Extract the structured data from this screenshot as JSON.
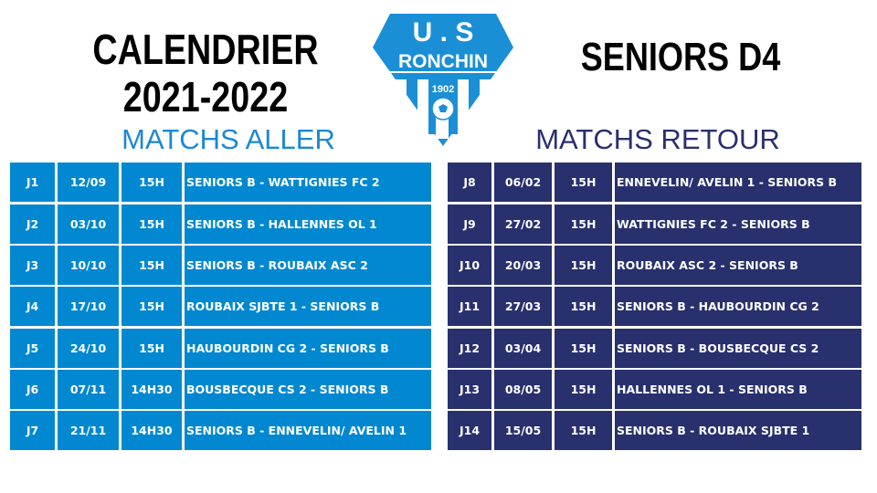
{
  "header": {
    "title_line1": "CALENDRIER",
    "title_line2": "2021-2022",
    "team": "SENIORS D4"
  },
  "logo": {
    "top": "U . S",
    "name": "RONCHIN",
    "year": "1902",
    "color": "#1a8fd6"
  },
  "colors": {
    "aller": "#0288d1",
    "retour": "#28306e"
  },
  "aller": {
    "heading": "MATCHS ALLER",
    "rows": [
      {
        "j": "J1",
        "date": "12/09",
        "time": "15H",
        "match": "SENIORS B - WATTIGNIES FC 2"
      },
      {
        "j": "J2",
        "date": "03/10",
        "time": "15H",
        "match": "SENIORS B - HALLENNES OL 1"
      },
      {
        "j": "J3",
        "date": "10/10",
        "time": "15H",
        "match": "SENIORS B - ROUBAIX ASC 2"
      },
      {
        "j": "J4",
        "date": "17/10",
        "time": "15H",
        "match": "ROUBAIX SJBTE 1 - SENIORS B"
      },
      {
        "j": "J5",
        "date": "24/10",
        "time": "15H",
        "match": "HAUBOURDIN CG 2 - SENIORS B"
      },
      {
        "j": "J6",
        "date": "07/11",
        "time": "14H30",
        "match": "BOUSBECQUE CS 2 - SENIORS B"
      },
      {
        "j": "J7",
        "date": "21/11",
        "time": "14H30",
        "match": "SENIORS B - ENNEVELIN/ AVELIN 1"
      }
    ]
  },
  "retour": {
    "heading": "MATCHS RETOUR",
    "rows": [
      {
        "j": "J8",
        "date": "06/02",
        "time": "15H",
        "match": "ENNEVELIN/ AVELIN 1 - SENIORS B"
      },
      {
        "j": "J9",
        "date": "27/02",
        "time": "15H",
        "match": "WATTIGNIES FC 2 - SENIORS B"
      },
      {
        "j": "J10",
        "date": "20/03",
        "time": "15H",
        "match": "ROUBAIX ASC 2 - SENIORS B"
      },
      {
        "j": "J11",
        "date": "27/03",
        "time": "15H",
        "match": "SENIORS B - HAUBOURDIN CG 2"
      },
      {
        "j": "J12",
        "date": "03/04",
        "time": "15H",
        "match": "SENIORS B - BOUSBECQUE CS 2"
      },
      {
        "j": "J13",
        "date": "08/05",
        "time": "15H",
        "match": "HALLENNES OL 1 - SENIORS B"
      },
      {
        "j": "J14",
        "date": "15/05",
        "time": "15H",
        "match": "SENIORS B - ROUBAIX SJBTE 1"
      }
    ]
  }
}
